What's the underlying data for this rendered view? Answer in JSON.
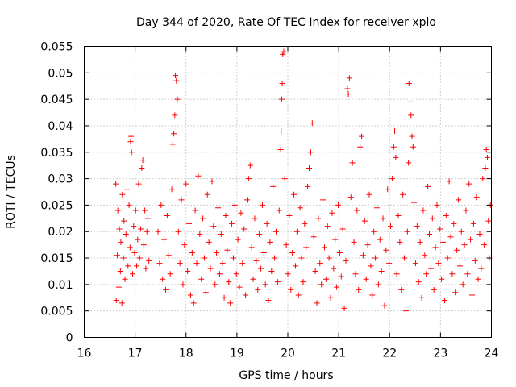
{
  "chart_data": {
    "type": "scatter",
    "title": "Day 344 of 2020, Rate Of TEC Index for receiver xplo",
    "xlabel": "GPS time / hours",
    "ylabel": "ROTI / TECUs",
    "xlim": [
      16,
      24
    ],
    "ylim": [
      0,
      0.055
    ],
    "x_ticks": [
      16,
      17,
      18,
      19,
      20,
      21,
      22,
      23,
      24
    ],
    "x_tick_labels": [
      "16",
      "17",
      "18",
      "19",
      "20",
      "21",
      "22",
      "23",
      "24"
    ],
    "y_ticks": [
      0,
      0.005,
      0.01,
      0.015,
      0.02,
      0.025,
      0.03,
      0.035,
      0.04,
      0.045,
      0.05,
      0.055
    ],
    "y_tick_labels": [
      "0",
      "0.005",
      "0.01",
      "0.015",
      "0.02",
      "0.025",
      "0.03",
      "0.035",
      "0.04",
      "0.045",
      "0.05",
      "0.055"
    ],
    "grid": true,
    "legend": "none",
    "marker": "+",
    "color": "#ff0000",
    "series": [
      {
        "name": "ROTI",
        "points": [
          [
            16.62,
            0.029
          ],
          [
            16.63,
            0.007
          ],
          [
            16.65,
            0.0155
          ],
          [
            16.66,
            0.024
          ],
          [
            16.68,
            0.0095
          ],
          [
            16.69,
            0.0205
          ],
          [
            16.71,
            0.0125
          ],
          [
            16.72,
            0.018
          ],
          [
            16.74,
            0.0065
          ],
          [
            16.75,
            0.027
          ],
          [
            16.77,
            0.015
          ],
          [
            16.78,
            0.022
          ],
          [
            16.8,
            0.011
          ],
          [
            16.82,
            0.0195
          ],
          [
            16.84,
            0.028
          ],
          [
            16.86,
            0.0135
          ],
          [
            16.88,
            0.025
          ],
          [
            16.9,
            0.017
          ],
          [
            16.91,
            0.037
          ],
          [
            16.92,
            0.038
          ],
          [
            16.93,
            0.035
          ],
          [
            16.95,
            0.012
          ],
          [
            16.97,
            0.021
          ],
          [
            16.99,
            0.016
          ],
          [
            17.01,
            0.024
          ],
          [
            17.03,
            0.0135
          ],
          [
            17.05,
            0.0185
          ],
          [
            17.07,
            0.029
          ],
          [
            17.09,
            0.015
          ],
          [
            17.11,
            0.0205
          ],
          [
            17.13,
            0.032
          ],
          [
            17.15,
            0.0335
          ],
          [
            17.17,
            0.0175
          ],
          [
            17.19,
            0.024
          ],
          [
            17.21,
            0.013
          ],
          [
            17.23,
            0.02
          ],
          [
            17.25,
            0.0225
          ],
          [
            17.27,
            0.0145
          ],
          [
            17.45,
            0.02
          ],
          [
            17.48,
            0.014
          ],
          [
            17.51,
            0.025
          ],
          [
            17.54,
            0.011
          ],
          [
            17.57,
            0.0185
          ],
          [
            17.6,
            0.009
          ],
          [
            17.63,
            0.023
          ],
          [
            17.66,
            0.0155
          ],
          [
            17.69,
            0.012
          ],
          [
            17.72,
            0.028
          ],
          [
            17.74,
            0.0365
          ],
          [
            17.76,
            0.0385
          ],
          [
            17.78,
            0.042
          ],
          [
            17.79,
            0.0495
          ],
          [
            17.81,
            0.0485
          ],
          [
            17.83,
            0.045
          ],
          [
            17.85,
            0.02
          ],
          [
            17.88,
            0.014
          ],
          [
            17.91,
            0.026
          ],
          [
            17.94,
            0.01
          ],
          [
            17.97,
            0.0175
          ],
          [
            18.0,
            0.029
          ],
          [
            18.03,
            0.0125
          ],
          [
            18.06,
            0.0215
          ],
          [
            18.09,
            0.008
          ],
          [
            18.12,
            0.016
          ],
          [
            18.15,
            0.0065
          ],
          [
            18.18,
            0.024
          ],
          [
            18.21,
            0.014
          ],
          [
            18.24,
            0.0305
          ],
          [
            18.27,
            0.0195
          ],
          [
            18.3,
            0.011
          ],
          [
            18.33,
            0.0225
          ],
          [
            18.36,
            0.015
          ],
          [
            18.39,
            0.0085
          ],
          [
            18.42,
            0.027
          ],
          [
            18.45,
            0.018
          ],
          [
            18.48,
            0.013
          ],
          [
            18.51,
            0.0295
          ],
          [
            18.54,
            0.021
          ],
          [
            18.57,
            0.01
          ],
          [
            18.6,
            0.016
          ],
          [
            18.63,
            0.0245
          ],
          [
            18.66,
            0.012
          ],
          [
            18.69,
            0.0195
          ],
          [
            18.72,
            0.014
          ],
          [
            18.75,
            0.0075
          ],
          [
            18.78,
            0.023
          ],
          [
            18.81,
            0.0165
          ],
          [
            18.84,
            0.0105
          ],
          [
            18.87,
            0.0065
          ],
          [
            18.9,
            0.0215
          ],
          [
            18.93,
            0.015
          ],
          [
            18.96,
            0.025
          ],
          [
            18.99,
            0.012
          ],
          [
            19.02,
            0.0185
          ],
          [
            19.05,
            0.0095
          ],
          [
            19.08,
            0.0235
          ],
          [
            19.11,
            0.014
          ],
          [
            19.14,
            0.0205
          ],
          [
            19.17,
            0.008
          ],
          [
            19.2,
            0.026
          ],
          [
            19.23,
            0.03
          ],
          [
            19.26,
            0.0325
          ],
          [
            19.29,
            0.017
          ],
          [
            19.32,
            0.011
          ],
          [
            19.35,
            0.0225
          ],
          [
            19.38,
            0.0145
          ],
          [
            19.41,
            0.009
          ],
          [
            19.44,
            0.0195
          ],
          [
            19.47,
            0.013
          ],
          [
            19.5,
            0.025
          ],
          [
            19.53,
            0.016
          ],
          [
            19.56,
            0.01
          ],
          [
            19.59,
            0.0215
          ],
          [
            19.62,
            0.007
          ],
          [
            19.65,
            0.018
          ],
          [
            19.68,
            0.0125
          ],
          [
            19.71,
            0.0285
          ],
          [
            19.74,
            0.015
          ],
          [
            19.77,
            0.02
          ],
          [
            19.8,
            0.0105
          ],
          [
            19.83,
            0.024
          ],
          [
            19.86,
            0.0355
          ],
          [
            19.87,
            0.039
          ],
          [
            19.88,
            0.045
          ],
          [
            19.89,
            0.048
          ],
          [
            19.9,
            0.0535
          ],
          [
            19.92,
            0.054
          ],
          [
            19.94,
            0.03
          ],
          [
            19.97,
            0.0175
          ],
          [
            20.0,
            0.012
          ],
          [
            20.03,
            0.023
          ],
          [
            20.06,
            0.009
          ],
          [
            20.09,
            0.016
          ],
          [
            20.12,
            0.027
          ],
          [
            20.15,
            0.0135
          ],
          [
            20.18,
            0.02
          ],
          [
            20.21,
            0.008
          ],
          [
            20.24,
            0.0245
          ],
          [
            20.27,
            0.015
          ],
          [
            20.3,
            0.0105
          ],
          [
            20.33,
            0.0215
          ],
          [
            20.36,
            0.017
          ],
          [
            20.39,
            0.0285
          ],
          [
            20.42,
            0.032
          ],
          [
            20.45,
            0.035
          ],
          [
            20.48,
            0.0405
          ],
          [
            20.51,
            0.019
          ],
          [
            20.54,
            0.0125
          ],
          [
            20.57,
            0.0065
          ],
          [
            20.6,
            0.0225
          ],
          [
            20.63,
            0.014
          ],
          [
            20.66,
            0.01
          ],
          [
            20.69,
            0.026
          ],
          [
            20.72,
            0.017
          ],
          [
            20.75,
            0.011
          ],
          [
            20.78,
            0.021
          ],
          [
            20.81,
            0.015
          ],
          [
            20.84,
            0.0075
          ],
          [
            20.87,
            0.0235
          ],
          [
            20.9,
            0.013
          ],
          [
            20.93,
            0.0185
          ],
          [
            20.96,
            0.0095
          ],
          [
            20.99,
            0.025
          ],
          [
            21.02,
            0.016
          ],
          [
            21.05,
            0.0115
          ],
          [
            21.08,
            0.0205
          ],
          [
            21.11,
            0.0055
          ],
          [
            21.14,
            0.0145
          ],
          [
            21.17,
            0.047
          ],
          [
            21.19,
            0.046
          ],
          [
            21.21,
            0.049
          ],
          [
            21.24,
            0.0265
          ],
          [
            21.27,
            0.033
          ],
          [
            21.3,
            0.018
          ],
          [
            21.33,
            0.012
          ],
          [
            21.36,
            0.024
          ],
          [
            21.39,
            0.009
          ],
          [
            21.42,
            0.036
          ],
          [
            21.45,
            0.038
          ],
          [
            21.48,
            0.0155
          ],
          [
            21.51,
            0.022
          ],
          [
            21.54,
            0.011
          ],
          [
            21.57,
            0.0175
          ],
          [
            21.6,
            0.027
          ],
          [
            21.63,
            0.0135
          ],
          [
            21.66,
            0.008
          ],
          [
            21.69,
            0.02
          ],
          [
            21.72,
            0.015
          ],
          [
            21.75,
            0.0245
          ],
          [
            21.78,
            0.01
          ],
          [
            21.81,
            0.0185
          ],
          [
            21.84,
            0.0125
          ],
          [
            21.87,
            0.0225
          ],
          [
            21.9,
            0.006
          ],
          [
            21.93,
            0.0165
          ],
          [
            21.96,
            0.028
          ],
          [
            21.99,
            0.014
          ],
          [
            22.02,
            0.021
          ],
          [
            22.05,
            0.03
          ],
          [
            22.08,
            0.036
          ],
          [
            22.1,
            0.039
          ],
          [
            22.12,
            0.034
          ],
          [
            22.14,
            0.012
          ],
          [
            22.17,
            0.023
          ],
          [
            22.2,
            0.018
          ],
          [
            22.23,
            0.009
          ],
          [
            22.26,
            0.027
          ],
          [
            22.29,
            0.015
          ],
          [
            22.32,
            0.005
          ],
          [
            22.35,
            0.02
          ],
          [
            22.37,
            0.033
          ],
          [
            22.38,
            0.048
          ],
          [
            22.4,
            0.0445
          ],
          [
            22.42,
            0.042
          ],
          [
            22.44,
            0.038
          ],
          [
            22.46,
            0.036
          ],
          [
            22.48,
            0.0255
          ],
          [
            22.51,
            0.014
          ],
          [
            22.54,
            0.021
          ],
          [
            22.57,
            0.0105
          ],
          [
            22.6,
            0.018
          ],
          [
            22.63,
            0.0075
          ],
          [
            22.66,
            0.024
          ],
          [
            22.69,
            0.0155
          ],
          [
            22.72,
            0.012
          ],
          [
            22.75,
            0.0285
          ],
          [
            22.78,
            0.0195
          ],
          [
            22.81,
            0.013
          ],
          [
            22.84,
            0.0225
          ],
          [
            22.87,
            0.009
          ],
          [
            22.9,
            0.017
          ],
          [
            22.93,
            0.025
          ],
          [
            22.96,
            0.014
          ],
          [
            22.99,
            0.0205
          ],
          [
            23.02,
            0.011
          ],
          [
            23.05,
            0.018
          ],
          [
            23.08,
            0.007
          ],
          [
            23.11,
            0.023
          ],
          [
            23.14,
            0.015
          ],
          [
            23.17,
            0.0295
          ],
          [
            23.2,
            0.019
          ],
          [
            23.23,
            0.012
          ],
          [
            23.26,
            0.0215
          ],
          [
            23.29,
            0.0085
          ],
          [
            23.32,
            0.0165
          ],
          [
            23.35,
            0.026
          ],
          [
            23.38,
            0.0135
          ],
          [
            23.41,
            0.02
          ],
          [
            23.44,
            0.01
          ],
          [
            23.47,
            0.0175
          ],
          [
            23.5,
            0.024
          ],
          [
            23.53,
            0.012
          ],
          [
            23.56,
            0.029
          ],
          [
            23.59,
            0.0185
          ],
          [
            23.62,
            0.008
          ],
          [
            23.65,
            0.0215
          ],
          [
            23.68,
            0.0145
          ],
          [
            23.71,
            0.0265
          ],
          [
            23.74,
            0.011
          ],
          [
            23.77,
            0.0195
          ],
          [
            23.8,
            0.013
          ],
          [
            23.83,
            0.03
          ],
          [
            23.86,
            0.0175
          ],
          [
            23.88,
            0.032
          ],
          [
            23.9,
            0.0355
          ],
          [
            23.92,
            0.034
          ],
          [
            23.94,
            0.022
          ],
          [
            23.96,
            0.015
          ],
          [
            23.98,
            0.025
          ]
        ]
      }
    ]
  }
}
